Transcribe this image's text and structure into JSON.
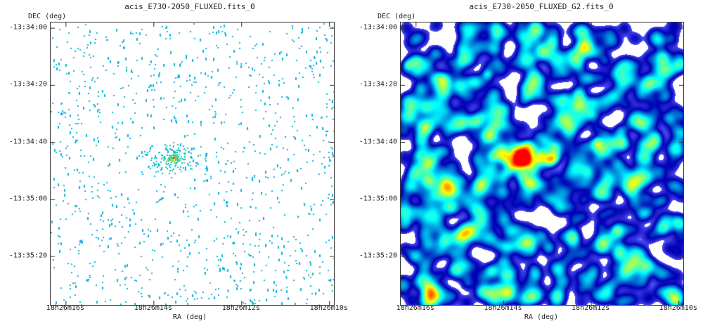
{
  "chart_data": [
    {
      "type": "heatmap",
      "title": "acis_E730-2050_FLUXED.fits_0",
      "ylabel": "DEC (deg)",
      "xlabel": "RA (deg)",
      "y_ticks": [
        "-13:34:00",
        "-13:34:20",
        "-13:34:40",
        "-13:35:00",
        "-13:35:20"
      ],
      "x_ticks": [
        "18h26m16s",
        "18h26m14s",
        "18h26m12s",
        "18h26m10s"
      ],
      "x_tick_seconds": [
        16,
        14,
        12,
        10
      ],
      "y_tick_arcsec": [
        0,
        20,
        40,
        60,
        80
      ],
      "x_range_seconds": [
        16.35,
        9.9
      ],
      "y_range_arcsec": [
        -2,
        97
      ],
      "source_center": {
        "ra_sec": 13.55,
        "dec_arcsec": 45.5
      },
      "colormap": [
        "#ffffff",
        "#1e90ff",
        "#00c8c8",
        "#ffff00",
        "#ff0000"
      ],
      "rendering": "sparse-pixels"
    },
    {
      "type": "heatmap",
      "title": "acis_E730-2050_FLUXED_G2.fits_0",
      "ylabel": "DEC (deg)",
      "xlabel": "RA (deg)",
      "y_ticks": [
        "-13:34:00",
        "-13:34:20",
        "-13:34:40",
        "-13:35:00",
        "-13:35:20"
      ],
      "x_ticks": [
        "18h26m16s",
        "18h26m14s",
        "18h26m12s",
        "18h26m10s"
      ],
      "x_tick_seconds": [
        16,
        14,
        12,
        10
      ],
      "y_tick_arcsec": [
        0,
        20,
        40,
        60,
        80
      ],
      "x_range_seconds": [
        16.35,
        9.9
      ],
      "y_range_arcsec": [
        -2,
        97
      ],
      "source_center": {
        "ra_sec": 13.55,
        "dec_arcsec": 45.5
      },
      "colormap": [
        "#ffffff",
        "#5a5aff",
        "#0000b4",
        "#00ffff",
        "#ffff00",
        "#ff0000"
      ],
      "rendering": "gaussian-smoothed"
    }
  ]
}
